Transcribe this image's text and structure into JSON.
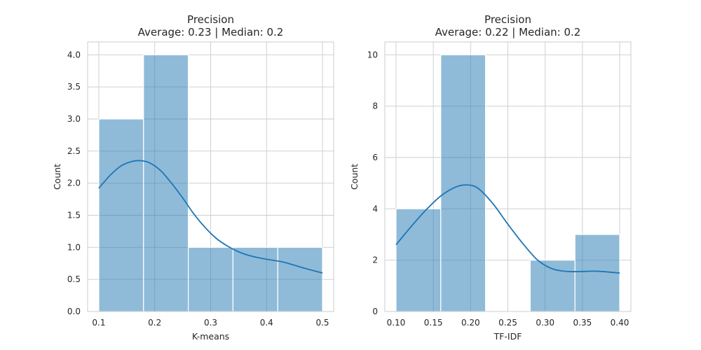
{
  "chart_data": [
    {
      "type": "bar",
      "subtype": "histogram-with-kde",
      "title": "Precision",
      "subtitle": "Average: 0.23 | Median: 0.2",
      "xlabel": "K-means",
      "ylabel": "Count",
      "xlim": [
        0.08,
        0.52
      ],
      "ylim": [
        0,
        4.2
      ],
      "xticks": [
        0.1,
        0.2,
        0.3,
        0.4,
        0.5
      ],
      "xtick_labels": [
        "0.1",
        "0.2",
        "0.3",
        "0.4",
        "0.5"
      ],
      "yticks": [
        0,
        0.5,
        1,
        1.5,
        2,
        2.5,
        3,
        3.5,
        4
      ],
      "ytick_labels": [
        "0.0",
        "0.5",
        "1.0",
        "1.5",
        "2.0",
        "2.5",
        "3.0",
        "3.5",
        "4.0"
      ],
      "grid": true,
      "bins": [
        {
          "start": 0.1,
          "end": 0.18,
          "count": 3
        },
        {
          "start": 0.18,
          "end": 0.26,
          "count": 4
        },
        {
          "start": 0.26,
          "end": 0.34,
          "count": 1
        },
        {
          "start": 0.34,
          "end": 0.42,
          "count": 1
        },
        {
          "start": 0.42,
          "end": 0.5,
          "count": 1
        }
      ],
      "kde": {
        "x": [
          0.1,
          0.12,
          0.14,
          0.16,
          0.175,
          0.19,
          0.21,
          0.23,
          0.25,
          0.27,
          0.29,
          0.31,
          0.33,
          0.35,
          0.37,
          0.39,
          0.41,
          0.43,
          0.45,
          0.47,
          0.5
        ],
        "y": [
          1.92,
          2.12,
          2.27,
          2.34,
          2.35,
          2.32,
          2.2,
          2.0,
          1.77,
          1.52,
          1.31,
          1.14,
          1.02,
          0.93,
          0.87,
          0.83,
          0.8,
          0.77,
          0.72,
          0.67,
          0.6
        ]
      }
    },
    {
      "type": "bar",
      "subtype": "histogram-with-kde",
      "title": "Precision",
      "subtitle": "Average: 0.22 | Median: 0.2",
      "xlabel": "TF-IDF",
      "ylabel": "Count",
      "xlim": [
        0.085,
        0.415
      ],
      "ylim": [
        0,
        10.5
      ],
      "xticks": [
        0.1,
        0.15,
        0.2,
        0.25,
        0.3,
        0.35,
        0.4
      ],
      "xtick_labels": [
        "0.10",
        "0.15",
        "0.20",
        "0.25",
        "0.30",
        "0.35",
        "0.40"
      ],
      "yticks": [
        0,
        2,
        4,
        6,
        8,
        10
      ],
      "ytick_labels": [
        "0",
        "2",
        "4",
        "6",
        "8",
        "10"
      ],
      "grid": true,
      "bins": [
        {
          "start": 0.1,
          "end": 0.16,
          "count": 4
        },
        {
          "start": 0.16,
          "end": 0.22,
          "count": 10
        },
        {
          "start": 0.22,
          "end": 0.28,
          "count": 0
        },
        {
          "start": 0.28,
          "end": 0.34,
          "count": 2
        },
        {
          "start": 0.34,
          "end": 0.4,
          "count": 3
        }
      ],
      "kde": {
        "x": [
          0.1,
          0.12,
          0.14,
          0.16,
          0.18,
          0.195,
          0.21,
          0.23,
          0.25,
          0.27,
          0.29,
          0.31,
          0.33,
          0.35,
          0.37,
          0.4
        ],
        "y": [
          2.6,
          3.3,
          3.95,
          4.5,
          4.85,
          4.93,
          4.8,
          4.2,
          3.4,
          2.65,
          2.0,
          1.66,
          1.56,
          1.56,
          1.57,
          1.5
        ]
      }
    }
  ]
}
